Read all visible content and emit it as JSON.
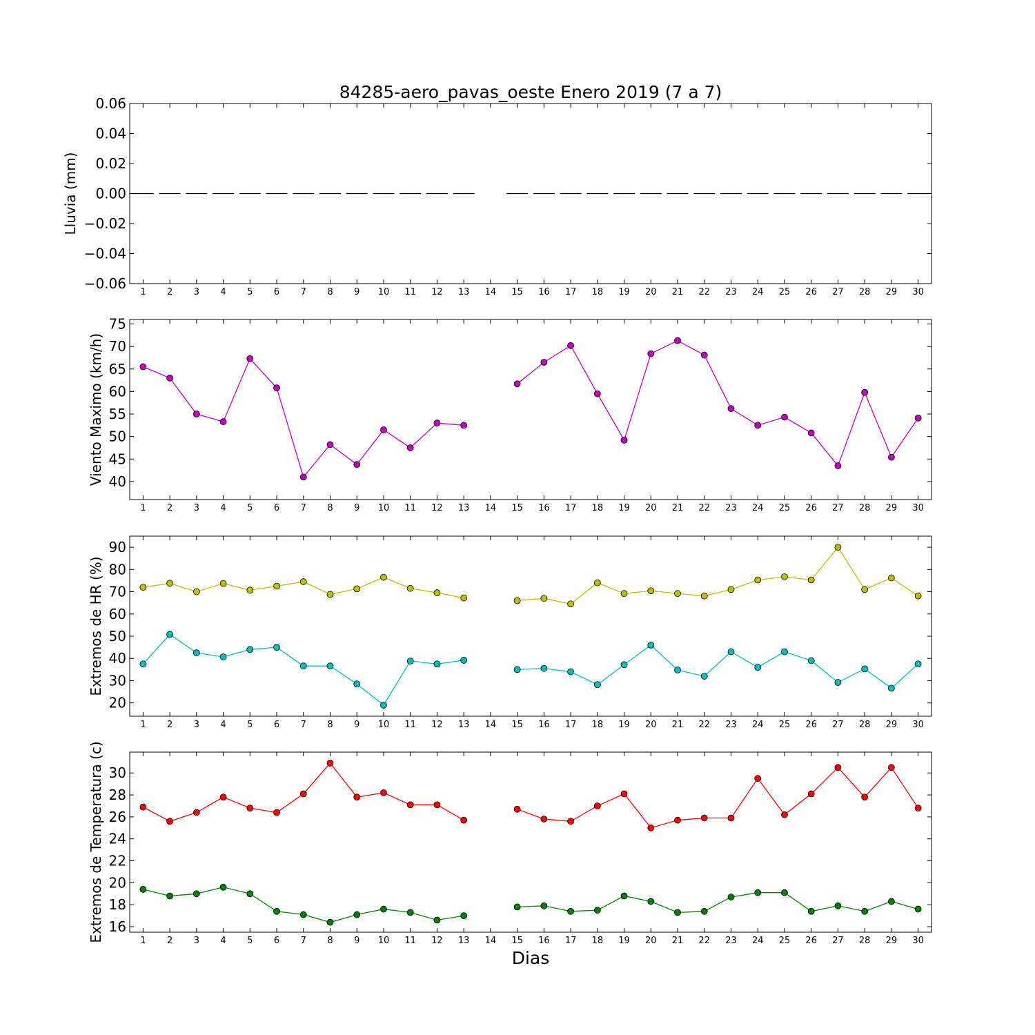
{
  "title": "84285-aero_pavas_oeste Enero 2019  (7 a 7)",
  "xlabel": "Dias",
  "days": [
    1,
    2,
    3,
    4,
    5,
    6,
    7,
    8,
    9,
    10,
    11,
    12,
    13,
    14,
    15,
    16,
    17,
    18,
    19,
    20,
    21,
    22,
    23,
    24,
    25,
    26,
    27,
    28,
    29,
    30
  ],
  "chart_data": [
    {
      "type": "bar",
      "ylabel": "Lluvia (mm)",
      "ylim": [
        -0.06,
        0.06
      ],
      "yticks": [
        "0.06",
        "0.04",
        "0.02",
        "0.00",
        "−0.02",
        "−0.04",
        "−0.06"
      ],
      "series": [
        {
          "color": "#000000",
          "values": [
            0,
            0,
            0,
            0,
            0,
            0,
            0,
            0,
            0,
            0,
            0,
            0,
            0,
            null,
            0,
            0,
            0,
            0,
            0,
            0,
            0,
            0,
            0,
            0,
            0,
            0,
            0,
            0,
            0,
            0
          ]
        }
      ]
    },
    {
      "type": "line",
      "ylabel": "Viento Maximo (km/h)",
      "ylim": [
        36,
        76
      ],
      "yticks": [
        "75",
        "70",
        "65",
        "60",
        "55",
        "50",
        "45",
        "40"
      ],
      "series": [
        {
          "color": "#bf00bf",
          "values": [
            65.5,
            63,
            55,
            53.3,
            67.3,
            60.8,
            41,
            48.2,
            43.8,
            51.5,
            47.5,
            53,
            52.5,
            null,
            61.7,
            66.5,
            70.2,
            59.5,
            49.2,
            68.4,
            71.3,
            68.1,
            56.2,
            52.5,
            54.3,
            50.8,
            43.5,
            59.8,
            45.4,
            54.1
          ]
        }
      ]
    },
    {
      "type": "line",
      "ylabel": "Extremos de HR (%)",
      "ylim": [
        14,
        95
      ],
      "yticks": [
        "90",
        "80",
        "70",
        "60",
        "50",
        "40",
        "30",
        "20"
      ],
      "series": [
        {
          "color": "#bfbf00",
          "values": [
            72,
            73.8,
            70,
            73.7,
            70.7,
            72.5,
            74.5,
            68.8,
            71.3,
            76.5,
            71.5,
            69.5,
            67.2,
            null,
            66,
            67,
            64.5,
            74,
            69.2,
            70.4,
            69.2,
            68.1,
            71,
            75.3,
            76.7,
            75.3,
            90,
            71,
            76.2,
            68.1
          ]
        },
        {
          "color": "#00bfbf",
          "values": [
            37.5,
            50.8,
            42.5,
            40.7,
            44,
            45,
            36.6,
            36.6,
            28.5,
            19,
            38.8,
            37.5,
            39.2,
            null,
            35,
            35.5,
            34,
            28.2,
            37.2,
            46,
            34.8,
            32,
            43,
            36,
            43,
            39,
            29.2,
            35.3,
            26.6,
            37.5
          ]
        }
      ]
    },
    {
      "type": "line",
      "ylabel": "Extremos de Temperatura (c)",
      "ylim": [
        15.5,
        31.9
      ],
      "yticks": [
        "30",
        "28",
        "26",
        "24",
        "22",
        "20",
        "18",
        "16"
      ],
      "series": [
        {
          "color": "#ff0000",
          "values": [
            26.9,
            25.6,
            26.4,
            27.8,
            26.8,
            26.4,
            28.1,
            30.9,
            27.8,
            28.2,
            27.1,
            27.1,
            25.7,
            null,
            26.7,
            25.8,
            25.6,
            27,
            28.1,
            25,
            25.7,
            25.9,
            25.9,
            29.5,
            26.2,
            28.1,
            30.5,
            27.8,
            30.5,
            26.8
          ]
        },
        {
          "color": "#008000",
          "values": [
            19.4,
            18.8,
            19,
            19.6,
            19,
            17.4,
            17.1,
            16.4,
            17.1,
            17.6,
            17.3,
            16.6,
            17,
            null,
            17.8,
            17.9,
            17.4,
            17.5,
            18.8,
            18.3,
            17.3,
            17.4,
            18.7,
            19.1,
            19.1,
            17.4,
            17.9,
            17.4,
            18.3,
            17.6
          ]
        }
      ]
    }
  ]
}
